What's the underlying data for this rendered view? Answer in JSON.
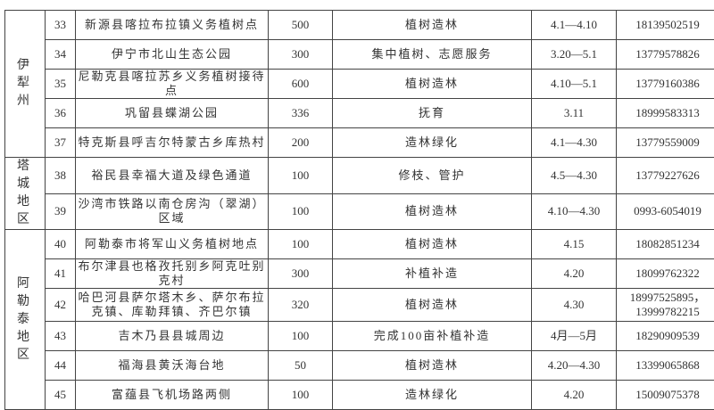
{
  "table": {
    "groups": [
      {
        "region": "伊犁州",
        "rows": [
          {
            "no": "33",
            "site": "新源县喀拉布拉镇义务植树点",
            "area": "500",
            "activity": "植树造林",
            "time": "4.1—4.10",
            "phone": "18139502519"
          },
          {
            "no": "34",
            "site": "伊宁市北山生态公园",
            "area": "300",
            "activity": "集中植树、志愿服务",
            "time": "3.20—5.1",
            "phone": "13779578826"
          },
          {
            "no": "35",
            "site": "尼勒克县喀拉苏乡义务植树接待点",
            "area": "600",
            "activity": "植树造林",
            "time": "4.10—5.1",
            "phone": "13779160386"
          },
          {
            "no": "36",
            "site": "巩留县蝶湖公园",
            "area": "336",
            "activity": "抚育",
            "time": "3.11",
            "phone": "18999583313"
          },
          {
            "no": "37",
            "site": "特克斯县呼吉尔特蒙古乡库热村",
            "area": "200",
            "activity": "造林绿化",
            "time": "4.1—4.30",
            "phone": "13779559009"
          }
        ]
      },
      {
        "region": "塔城地区",
        "rows": [
          {
            "no": "38",
            "site": "裕民县幸福大道及绿色通道",
            "area": "100",
            "activity": "修枝、管护",
            "time": "4.5—4.30",
            "phone": "13779227626"
          },
          {
            "no": "39",
            "site": "沙湾市铁路以南仓房沟（翠湖）区域",
            "area": "100",
            "activity": "植树造林",
            "time": "4.10—4.30",
            "phone": "0993-6054019"
          }
        ]
      },
      {
        "region": "阿勒泰地区",
        "rows": [
          {
            "no": "40",
            "site": "阿勒泰市将军山义务植树地点",
            "area": "100",
            "activity": "植树造林",
            "time": "4.15",
            "phone": "18082851234"
          },
          {
            "no": "41",
            "site": "布尔津县也格孜托别乡阿克吐别克村",
            "area": "300",
            "activity": "补植补造",
            "time": "4.20",
            "phone": "18099762322"
          },
          {
            "no": "42",
            "site": "哈巴河县萨尔塔木乡、萨尔布拉克镇、库勒拜镇、齐巴尔镇",
            "area": "320",
            "activity": "植树造林",
            "time": "4.30",
            "phone": "18997525895，13999782215"
          },
          {
            "no": "43",
            "site": "吉木乃县县城周边",
            "area": "100",
            "activity": "完成100亩补植补造",
            "time": "4月—5月",
            "phone": "18290909539"
          },
          {
            "no": "44",
            "site": "福海县黄沃海台地",
            "area": "50",
            "activity": "植树造林",
            "time": "4.20—4.30",
            "phone": "13399065868"
          },
          {
            "no": "45",
            "site": "富蕴县飞机场路两侧",
            "area": "100",
            "activity": "造林绿化",
            "time": "4.20",
            "phone": "15009075378"
          }
        ]
      }
    ]
  }
}
